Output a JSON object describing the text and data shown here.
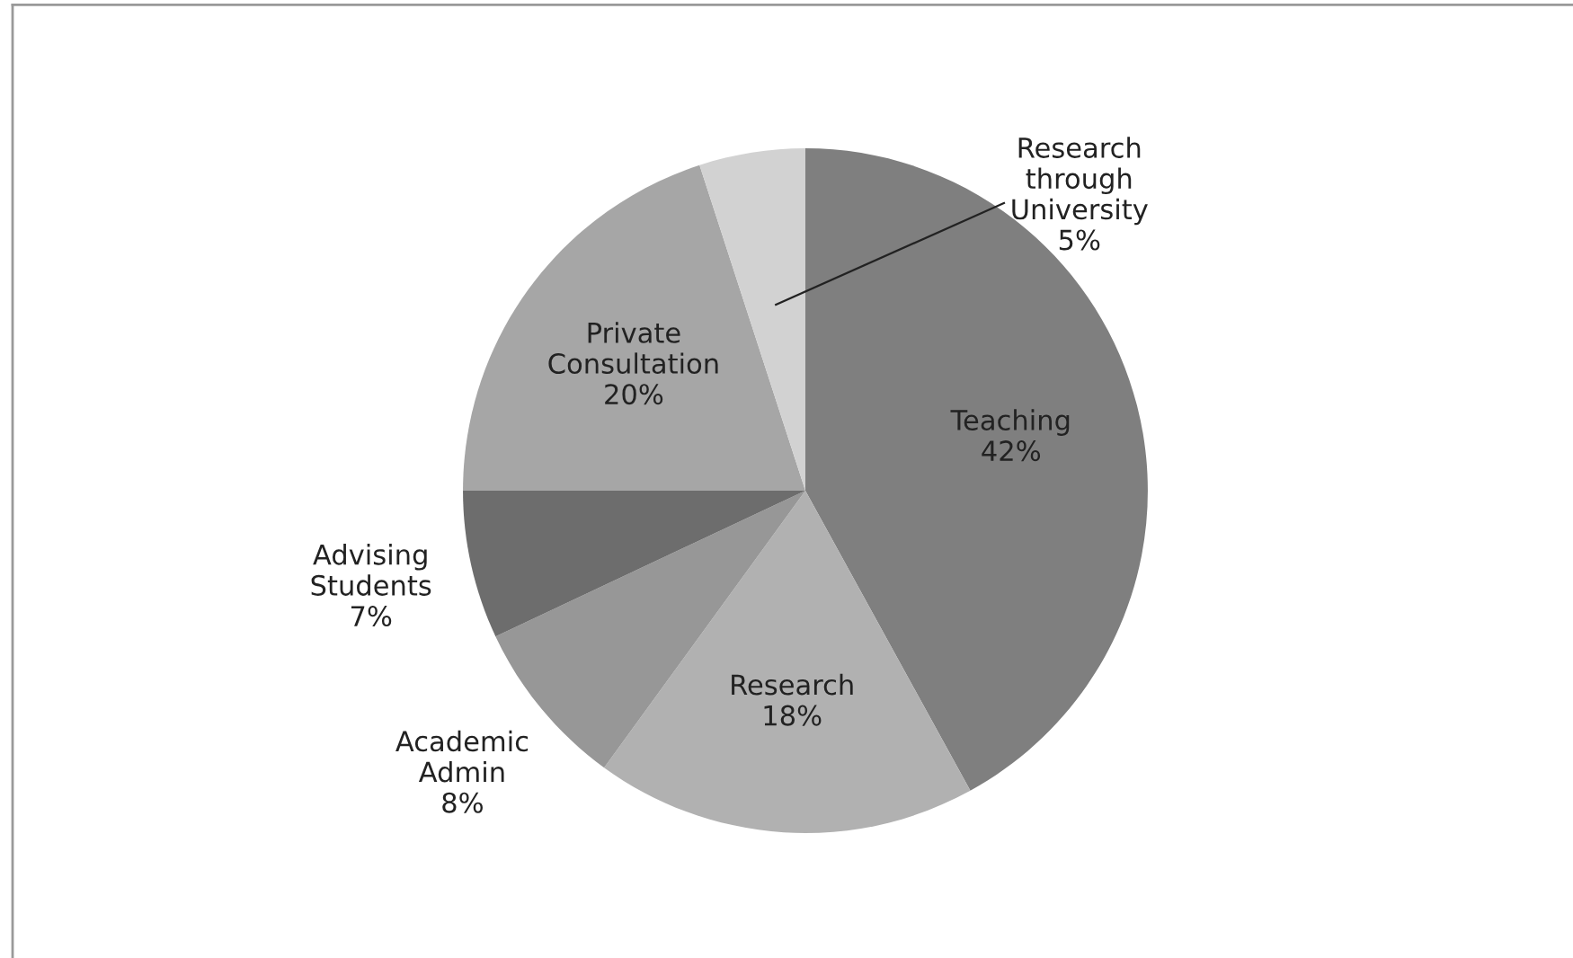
{
  "chart_data": {
    "type": "pie",
    "categories": [
      "Teaching",
      "Research",
      "Academic Admin",
      "Advising Students",
      "Private Consultation",
      "Research through University"
    ],
    "values": [
      42,
      18,
      8,
      7,
      20,
      5
    ],
    "colors": [
      "#7f7f7f",
      "#b1b1b1",
      "#979797",
      "#6d6d6d",
      "#a6a6a6",
      "#d2d2d2"
    ],
    "value_labels": [
      "42%",
      "18%",
      "8%",
      "7%",
      "20%",
      "5%"
    ]
  }
}
